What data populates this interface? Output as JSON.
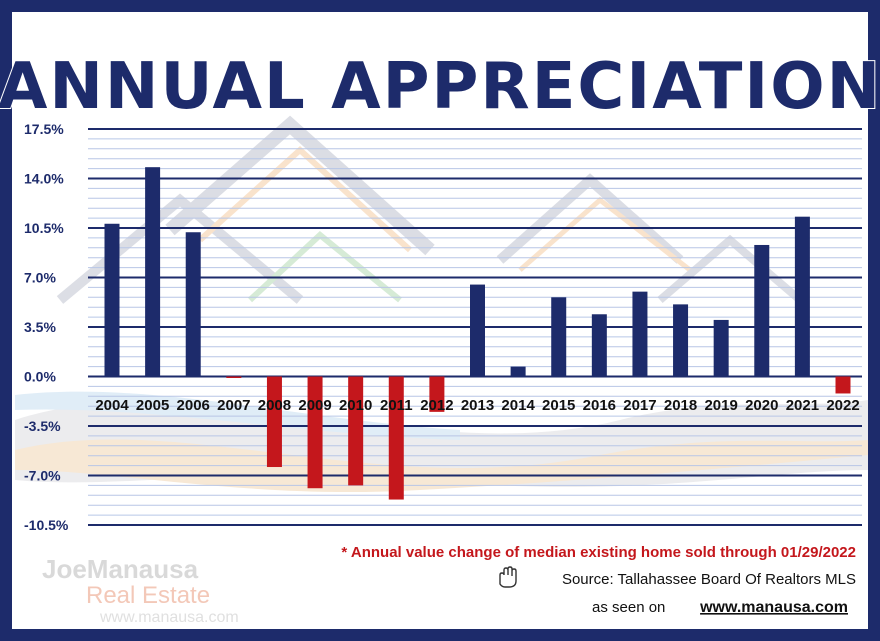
{
  "chart_data": {
    "type": "bar",
    "title": "ANNUAL APPRECIATION",
    "categories": [
      "2004",
      "2005",
      "2006",
      "2007",
      "2008",
      "2009",
      "2010",
      "2011",
      "2012",
      "2013",
      "2014",
      "2015",
      "2016",
      "2017",
      "2018",
      "2019",
      "2020",
      "2021",
      "2022"
    ],
    "values": [
      10.8,
      14.8,
      10.2,
      -0.1,
      -6.4,
      -7.9,
      -7.7,
      -8.7,
      -2.5,
      6.5,
      0.7,
      5.6,
      4.4,
      6.0,
      5.1,
      4.0,
      9.3,
      11.3,
      -1.2
    ],
    "yticks": [
      "17.5%",
      "14.0%",
      "10.5%",
      "7.0%",
      "3.5%",
      "0.0%",
      "-3.5%",
      "-7.0%",
      "-10.5%"
    ],
    "ylim": [
      -10.5,
      17.5
    ],
    "xlabel": "",
    "ylabel": "",
    "grid": true,
    "colors": {
      "positive": "#1d2b6b",
      "negative": "#c4171c"
    }
  },
  "notes": {
    "footnote": "* Annual value change of median existing home sold through 01/29/2022",
    "source": "Source: Tallahassee Board Of Realtors MLS",
    "seen_on_prefix": "as seen on",
    "seen_on_site": "www.manausa.com"
  },
  "logo": {
    "brand": "JoeManausa",
    "sub": "Real Estate",
    "url": "www.manausa.com"
  },
  "icons": {
    "source": "hand-icon"
  },
  "colors": {
    "frame": "#1d2b6b",
    "accent": "#c4171c"
  }
}
